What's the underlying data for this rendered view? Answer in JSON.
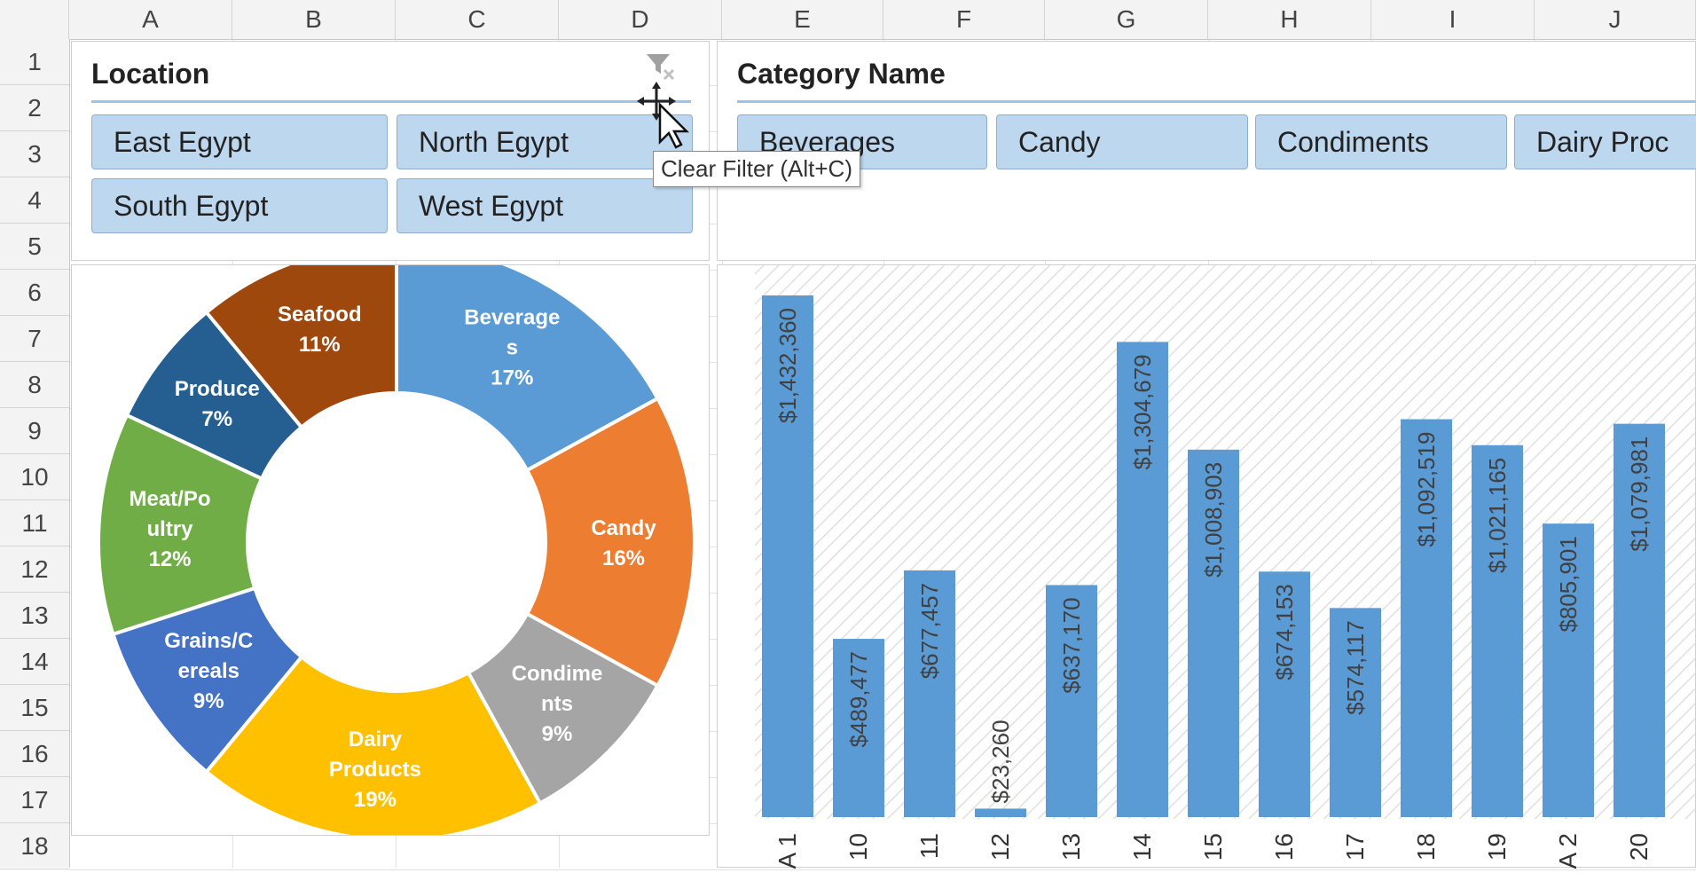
{
  "sheet": {
    "columns": [
      "A",
      "B",
      "C",
      "D",
      "E",
      "F",
      "G",
      "H",
      "I",
      "J"
    ],
    "rows": [
      "1",
      "2",
      "3",
      "4",
      "5",
      "6",
      "7",
      "8",
      "9",
      "10",
      "11",
      "12",
      "13",
      "14",
      "15",
      "16",
      "17",
      "18"
    ]
  },
  "location_slicer": {
    "title": "Location",
    "items": [
      "East Egypt",
      "North Egypt",
      "South Egypt",
      "West Egypt"
    ],
    "clear_filter_tooltip": "Clear Filter (Alt+C)"
  },
  "category_slicer": {
    "title": "Category Name",
    "items": [
      "Beverages",
      "Candy",
      "Condiments",
      "Dairy Proc"
    ]
  },
  "colors": {
    "slicer_button": "#bdd7ee",
    "bar": "#5b9bd5"
  },
  "chart_data": [
    {
      "type": "pie",
      "subtype": "doughnut",
      "labels": [
        "Beverages",
        "Candy",
        "Condiments",
        "Dairy Products",
        "Grains/Cereals",
        "Meat/Poultry",
        "Produce",
        "Seafood"
      ],
      "display_labels": [
        [
          "Beverage",
          "s",
          "17%"
        ],
        [
          "Candy",
          "16%"
        ],
        [
          "Condime",
          "nts",
          "9%"
        ],
        [
          "Dairy",
          "Products",
          "19%"
        ],
        [
          "Grains/C",
          "ereals",
          "9%"
        ],
        [
          "Meat/Po",
          "ultry",
          "12%"
        ],
        [
          "Produce",
          "7%"
        ],
        [
          "Seafood",
          "11%"
        ]
      ],
      "values": [
        17,
        16,
        9,
        19,
        9,
        12,
        7,
        11
      ],
      "colors": [
        "#5b9bd5",
        "#ed7d31",
        "#a5a5a5",
        "#ffc000",
        "#4472c4",
        "#70ad47",
        "#255e91",
        "#9e480e"
      ]
    },
    {
      "type": "bar",
      "orientation": "vertical",
      "categories": [
        "A 1",
        "10",
        "11",
        "12",
        "13",
        "14",
        "15",
        "16",
        "17",
        "18",
        "19",
        "A 2",
        "20"
      ],
      "values": [
        1432360,
        489477,
        677457,
        23260,
        637170,
        1304679,
        1008903,
        674153,
        574117,
        1092519,
        1021165,
        805901,
        1079981
      ],
      "data_labels": [
        "$1,432,360",
        "$489,477",
        "$677,457",
        "$23,260",
        "$637,170",
        "$1,304,679",
        "$1,008,903",
        "$674,153",
        "$574,117",
        "$1,092,519",
        "$1,021,165",
        "$805,901",
        "$1,079,981"
      ]
    }
  ]
}
